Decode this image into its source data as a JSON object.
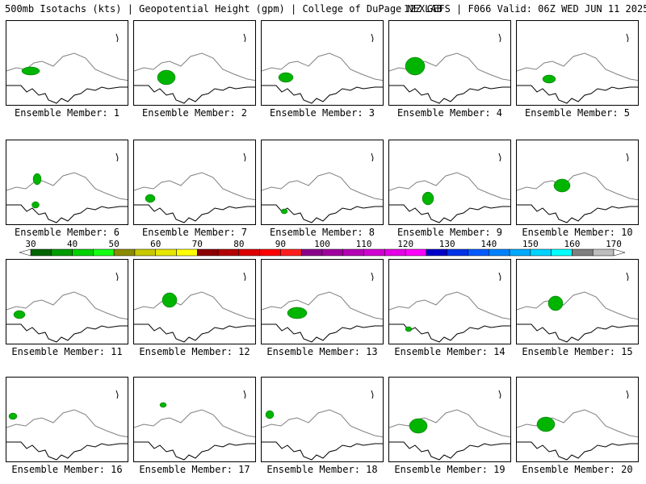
{
  "header": {
    "left": "500mb Isotachs (kts) | Geopotential Height (gpm) | College of DuPage NEXLAB",
    "right": "12Z GEFS | F066 Valid: 06Z WED JUN 11 2025"
  },
  "members": [
    {
      "label": "Ensemble Member: 1"
    },
    {
      "label": "Ensemble Member: 2"
    },
    {
      "label": "Ensemble Member: 3"
    },
    {
      "label": "Ensemble Member: 4"
    },
    {
      "label": "Ensemble Member: 5"
    },
    {
      "label": "Ensemble Member: 6"
    },
    {
      "label": "Ensemble Member: 7"
    },
    {
      "label": "Ensemble Member: 8"
    },
    {
      "label": "Ensemble Member: 9"
    },
    {
      "label": "Ensemble Member: 10"
    },
    {
      "label": "Ensemble Member: 11"
    },
    {
      "label": "Ensemble Member: 12"
    },
    {
      "label": "Ensemble Member: 13"
    },
    {
      "label": "Ensemble Member: 14"
    },
    {
      "label": "Ensemble Member: 15"
    },
    {
      "label": "Ensemble Member: 16"
    },
    {
      "label": "Ensemble Member: 17"
    },
    {
      "label": "Ensemble Member: 18"
    },
    {
      "label": "Ensemble Member: 19"
    },
    {
      "label": "Ensemble Member: 20"
    }
  ],
  "colorbar": {
    "labels": [
      "30",
      "40",
      "50",
      "60",
      "70",
      "80",
      "90",
      "100",
      "110",
      "120",
      "130",
      "140",
      "150",
      "160",
      "170"
    ],
    "colors": [
      "#006400",
      "#009b00",
      "#00d200",
      "#14ff14",
      "#8b8b00",
      "#c8c800",
      "#e6e600",
      "#ffff00",
      "#8b0000",
      "#b40000",
      "#dc0000",
      "#ff0000",
      "#ff1e1e",
      "#8b008b",
      "#a000a0",
      "#b400b4",
      "#d200d2",
      "#e600e6",
      "#ff00ff",
      "#0000c8",
      "#0032e6",
      "#005aff",
      "#0082ff",
      "#00aaff",
      "#00d2ff",
      "#00ffff",
      "#7f7f7f",
      "#bebebe"
    ]
  }
}
